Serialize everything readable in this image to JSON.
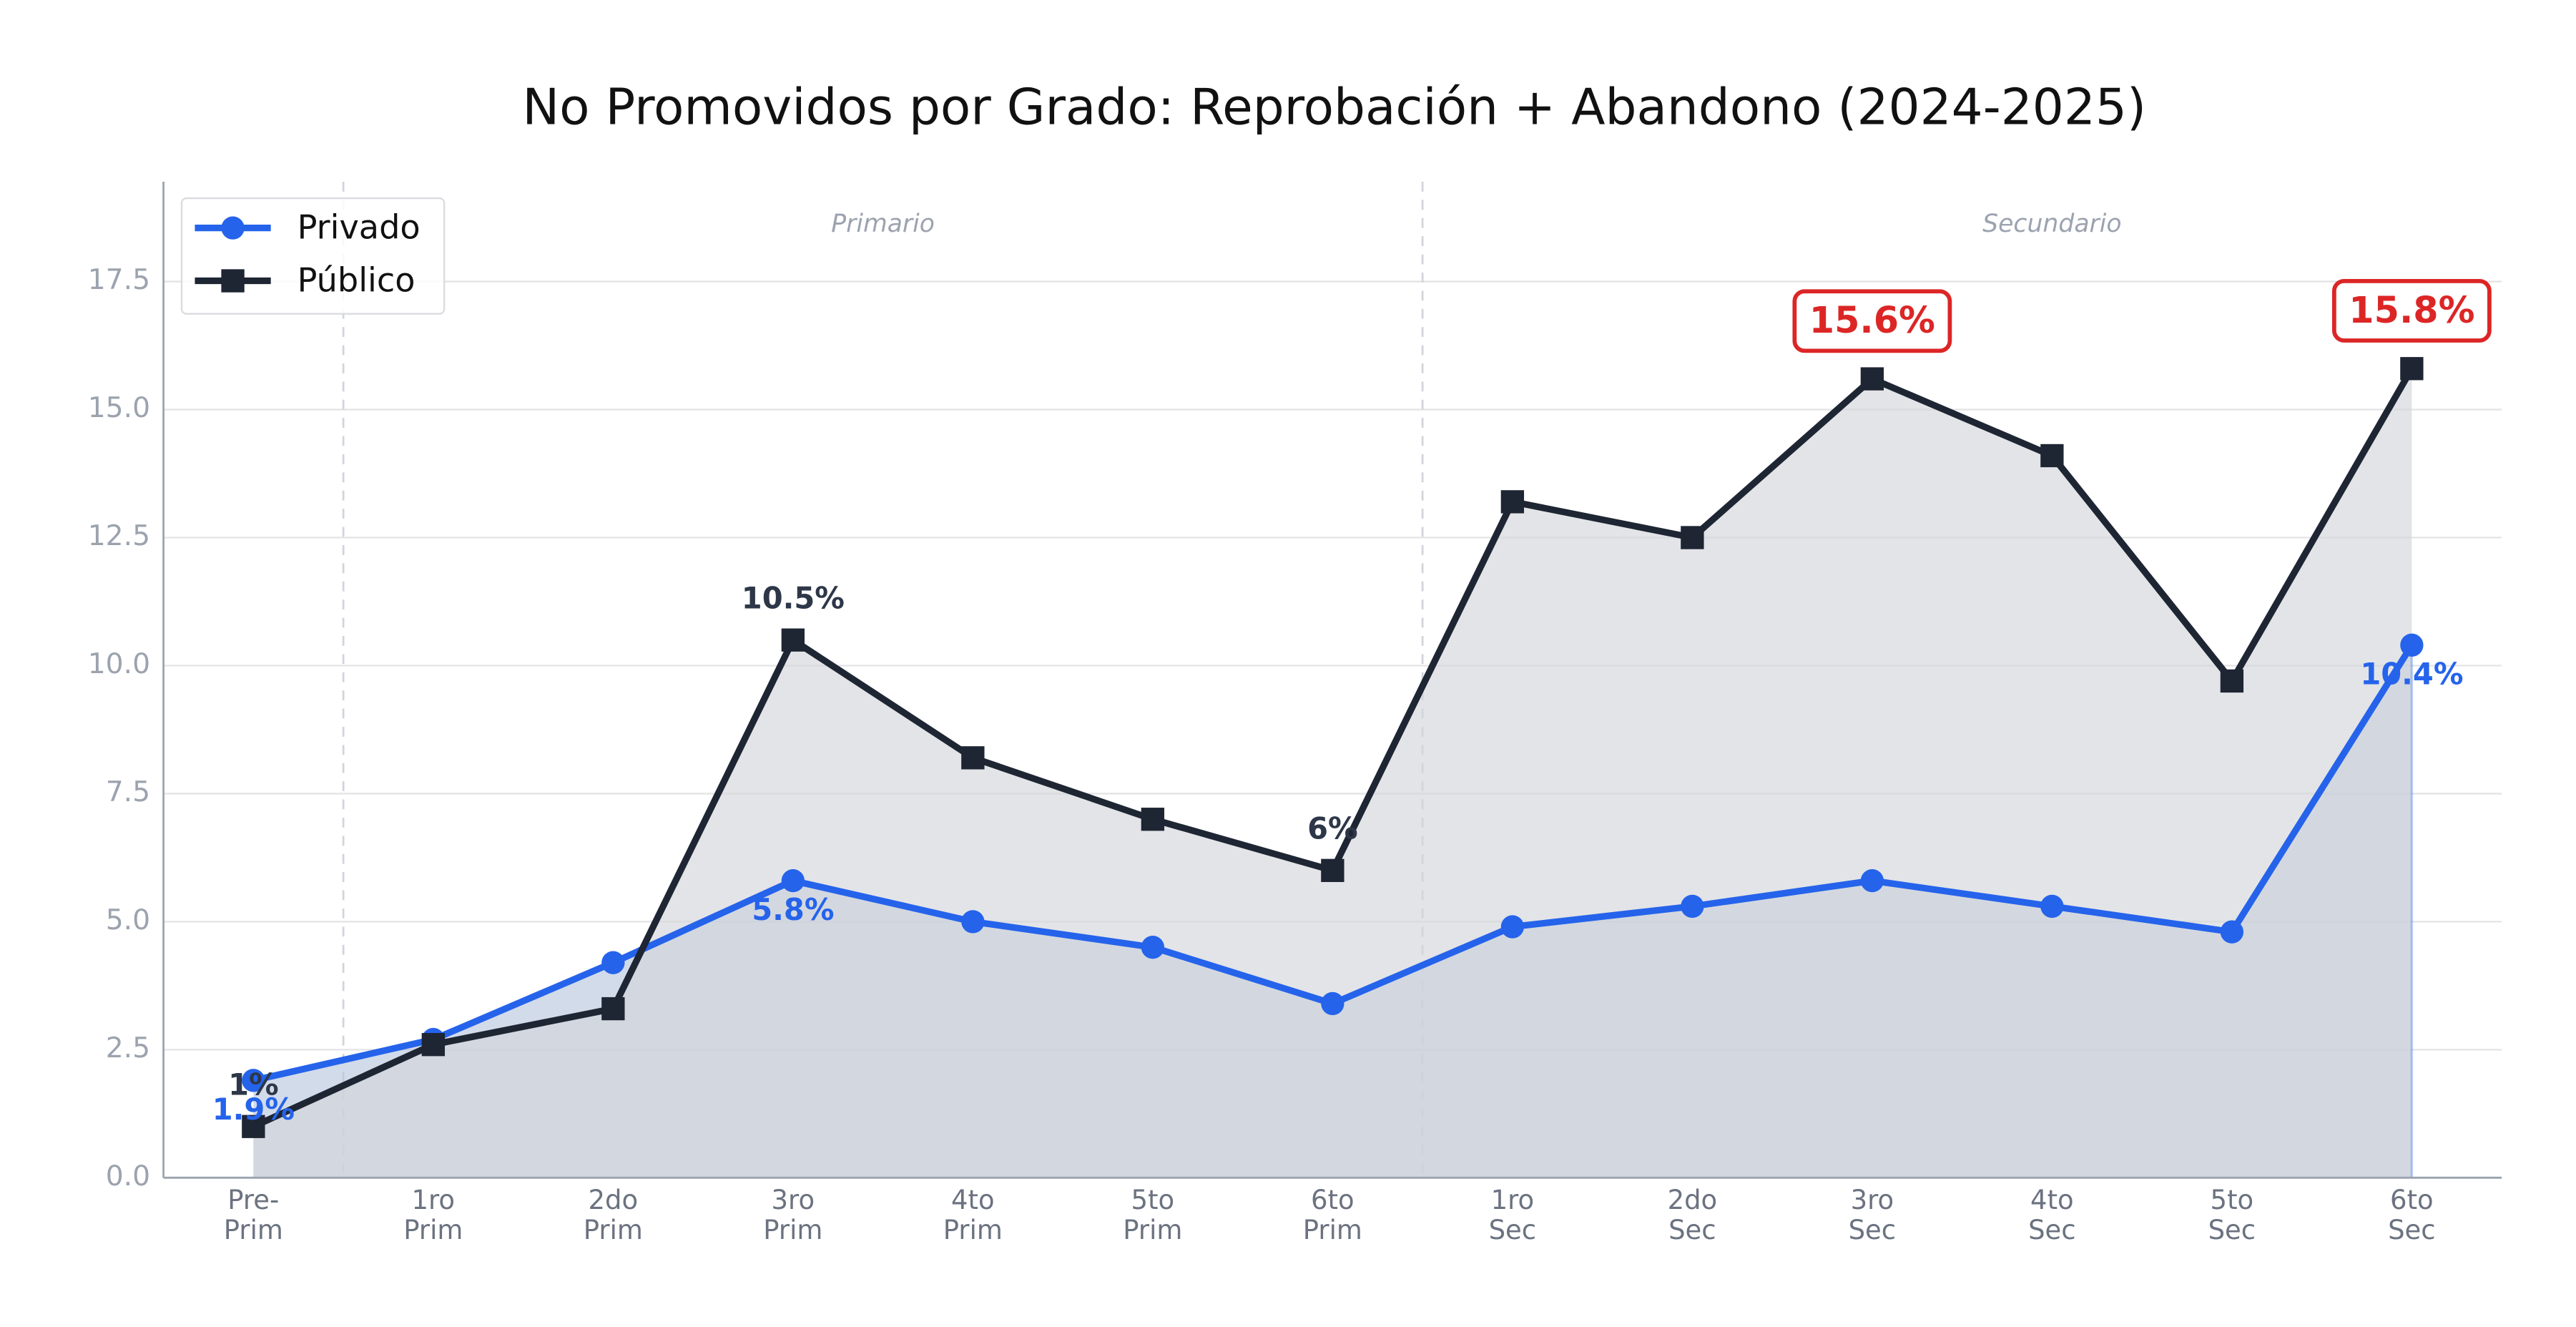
{
  "chart_data": {
    "type": "line",
    "title": "No Promovidos por Grado: Reprobación + Abandono (2024-2025)",
    "categories": [
      "Pre-\nPrim",
      "1ro\nPrim",
      "2do\nPrim",
      "3ro\nPrim",
      "4to\nPrim",
      "5to\nPrim",
      "6to\nPrim",
      "1ro\nSec",
      "2do\nSec",
      "3ro\nSec",
      "4to\nSec",
      "5to\nSec",
      "6to\nSec"
    ],
    "series": [
      {
        "name": "Privado",
        "color": "#2563eb",
        "marker": "circle",
        "fill": "#b4c3dc",
        "values": [
          1.9,
          2.7,
          4.2,
          5.8,
          5.0,
          4.5,
          3.4,
          4.9,
          5.3,
          5.8,
          5.3,
          4.8,
          10.4
        ],
        "value_labels": [
          "1.9%",
          null,
          null,
          "5.8%",
          null,
          null,
          null,
          null,
          null,
          null,
          null,
          null,
          "10.4%"
        ],
        "label_side": "below"
      },
      {
        "name": "Público",
        "color": "#1e2533",
        "marker": "square",
        "fill": "#d4d6da",
        "values": [
          1.0,
          2.6,
          3.3,
          10.5,
          8.2,
          7.0,
          6.0,
          13.2,
          12.5,
          15.6,
          14.1,
          9.7,
          15.8
        ],
        "value_labels": [
          "1%",
          null,
          null,
          "10.5%",
          null,
          null,
          "6%",
          null,
          null,
          "15.6%",
          null,
          null,
          "15.8%"
        ],
        "label_side": "above",
        "boxed_labels": [
          9,
          12
        ],
        "boxed_color": "#dc2626"
      }
    ],
    "sections": [
      {
        "label": "Primario",
        "x": 3.5
      },
      {
        "label": "Secundario",
        "x": 10
      }
    ],
    "dividers": [
      0.5,
      6.5
    ],
    "ylim": [
      0,
      19.45
    ],
    "yticks": [
      {
        "value": 0,
        "label": "0.0"
      },
      2.5,
      {
        "value": 5,
        "label": "5.0"
      },
      7.5,
      {
        "value": 10,
        "label": "10.0"
      },
      12.5,
      {
        "value": 15,
        "label": "15.0"
      },
      17.5
    ],
    "grid": true,
    "legend": "upper left"
  }
}
